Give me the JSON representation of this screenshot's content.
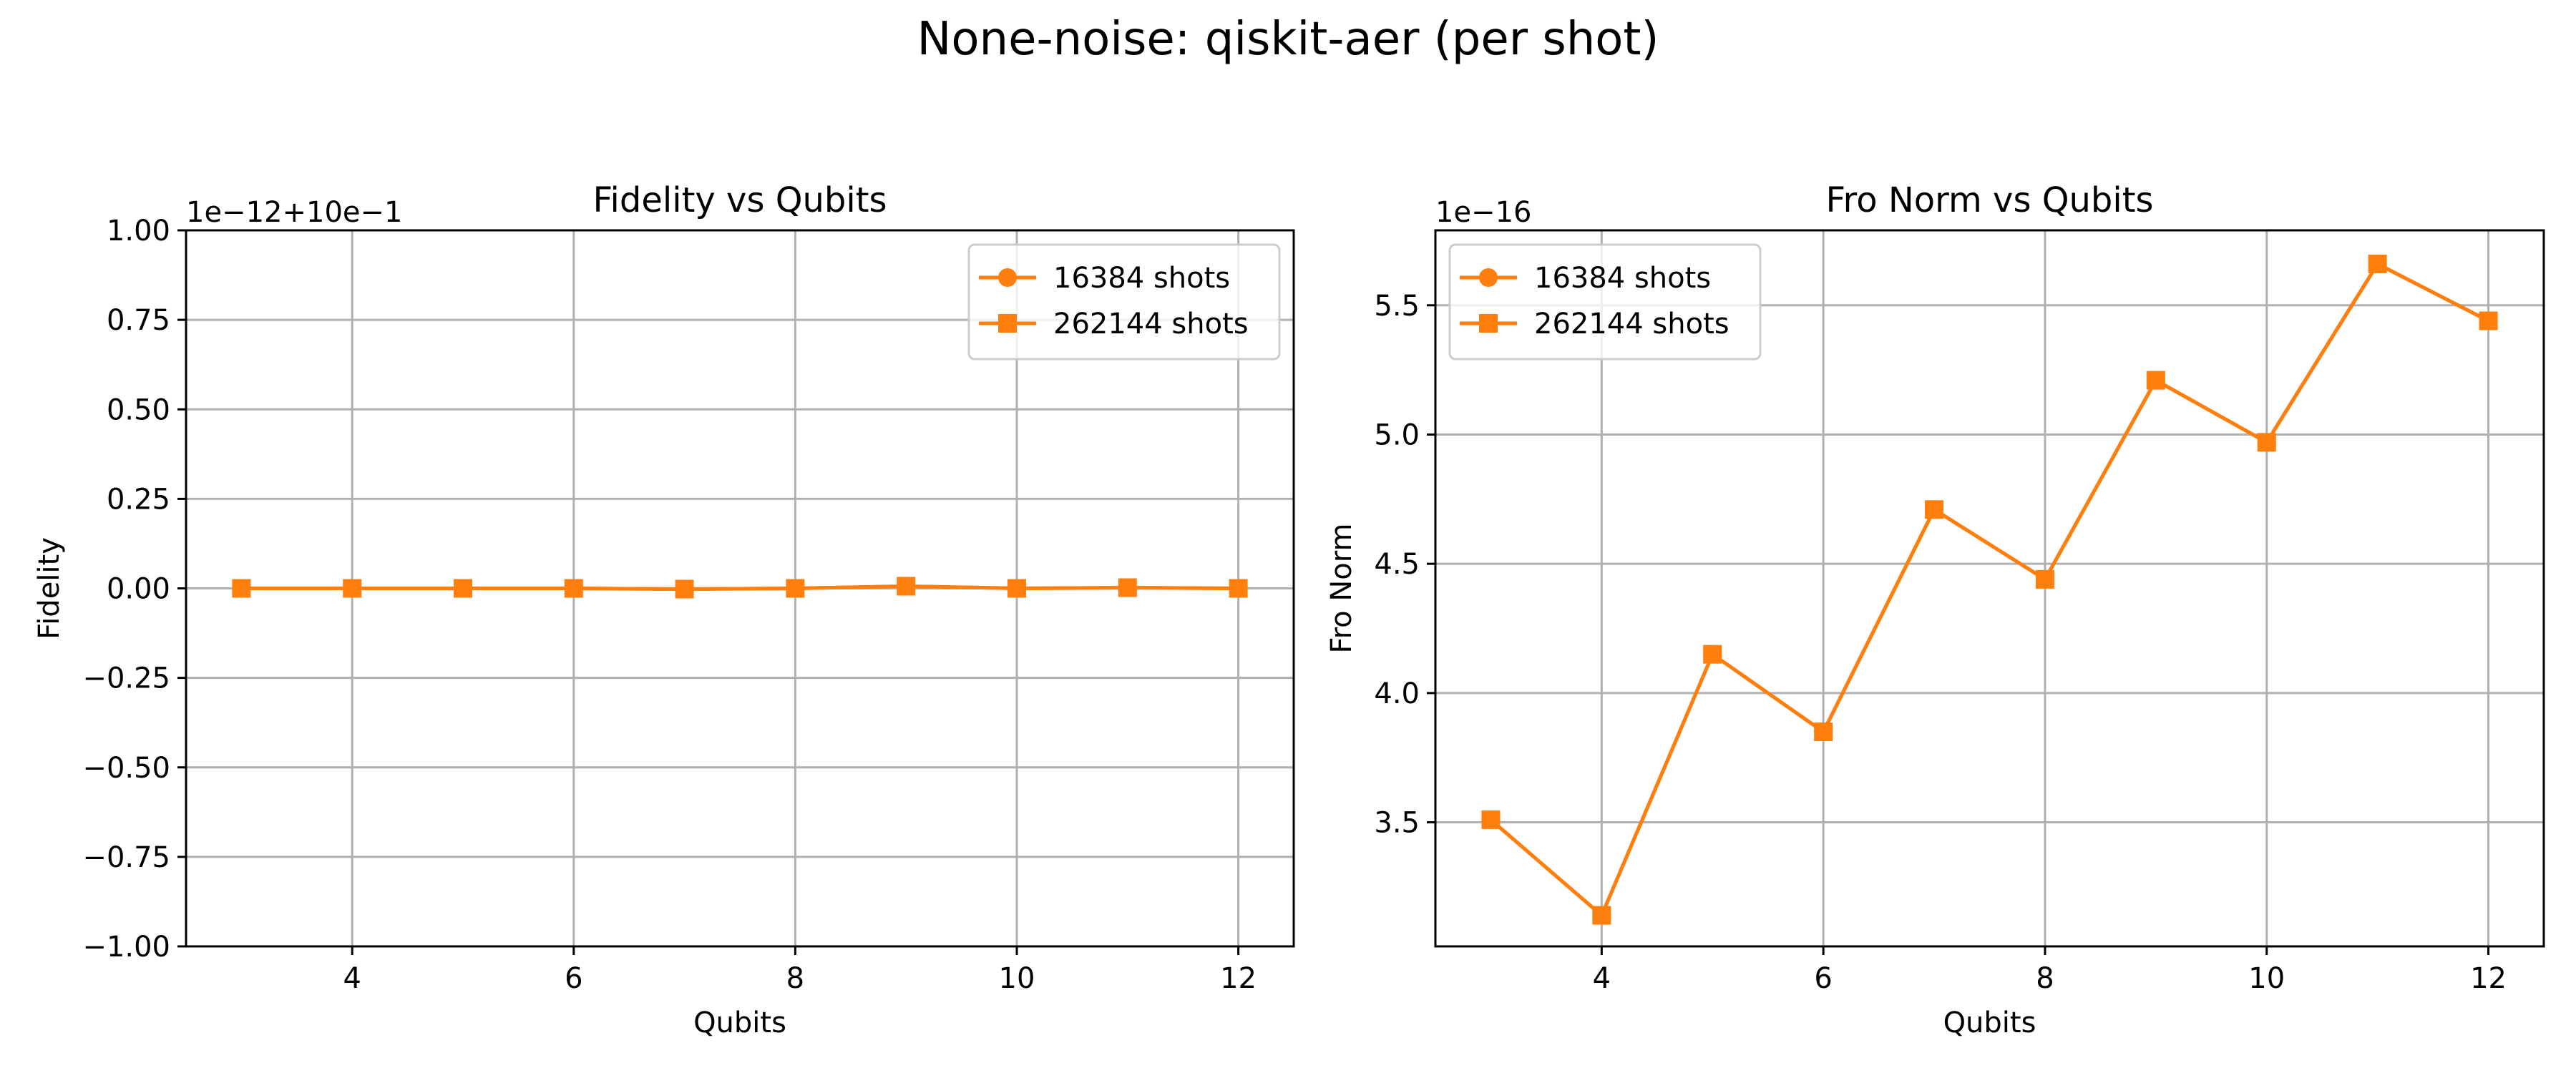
{
  "figure": {
    "title": "None-noise: qiskit-aer (per shot)"
  },
  "chart_data": [
    {
      "type": "line",
      "title": "Fidelity vs Qubits",
      "xlabel": "Qubits",
      "ylabel": "Fidelity",
      "offset_text": "1e−12+10e−1",
      "xlim": [
        2.5,
        12.5
      ],
      "ylim": [
        -1.0,
        1.0
      ],
      "xticks": [
        4,
        6,
        8,
        10,
        12
      ],
      "xtick_labels": [
        "4",
        "6",
        "8",
        "10",
        "12"
      ],
      "yticks": [
        -1.0,
        -0.75,
        -0.5,
        -0.25,
        0.0,
        0.25,
        0.5,
        0.75,
        1.0
      ],
      "ytick_labels": [
        "−1.00",
        "−0.75",
        "−0.50",
        "−0.25",
        "0.00",
        "0.25",
        "0.50",
        "0.75",
        "1.00"
      ],
      "grid": true,
      "legend_position": "top-right",
      "x": [
        3,
        4,
        5,
        6,
        7,
        8,
        9,
        10,
        11,
        12
      ],
      "series": [
        {
          "name": "16384 shots",
          "marker": "circle",
          "color": "#ff7f0e",
          "values": [
            0.0,
            0.0,
            0.0,
            0.0,
            -0.002,
            0.0,
            0.006,
            0.0,
            0.002,
            0.0
          ]
        },
        {
          "name": "262144 shots",
          "marker": "square",
          "color": "#ff7f0e",
          "values": [
            0.0,
            0.0,
            0.0,
            0.0,
            -0.002,
            0.0,
            0.006,
            0.0,
            0.002,
            0.0
          ]
        }
      ]
    },
    {
      "type": "line",
      "title": "Fro Norm vs Qubits",
      "xlabel": "Qubits",
      "ylabel": "Fro Norm",
      "offset_text": "1e−16",
      "xlim": [
        2.5,
        12.5
      ],
      "ylim": [
        3.02,
        5.79
      ],
      "xticks": [
        4,
        6,
        8,
        10,
        12
      ],
      "xtick_labels": [
        "4",
        "6",
        "8",
        "10",
        "12"
      ],
      "yticks": [
        3.5,
        4.0,
        4.5,
        5.0,
        5.5
      ],
      "ytick_labels": [
        "3.5",
        "4.0",
        "4.5",
        "5.0",
        "5.5"
      ],
      "grid": true,
      "legend_position": "top-left",
      "x": [
        3,
        4,
        5,
        6,
        7,
        8,
        9,
        10,
        11,
        12
      ],
      "series": [
        {
          "name": "16384 shots",
          "marker": "circle",
          "color": "#ff7f0e",
          "values": [
            3.51,
            3.14,
            4.15,
            3.85,
            4.71,
            4.44,
            5.21,
            4.97,
            5.66,
            5.44
          ]
        },
        {
          "name": "262144 shots",
          "marker": "square",
          "color": "#ff7f0e",
          "values": [
            3.51,
            3.14,
            4.15,
            3.85,
            4.71,
            4.44,
            5.21,
            4.97,
            5.66,
            5.44
          ]
        }
      ]
    }
  ]
}
